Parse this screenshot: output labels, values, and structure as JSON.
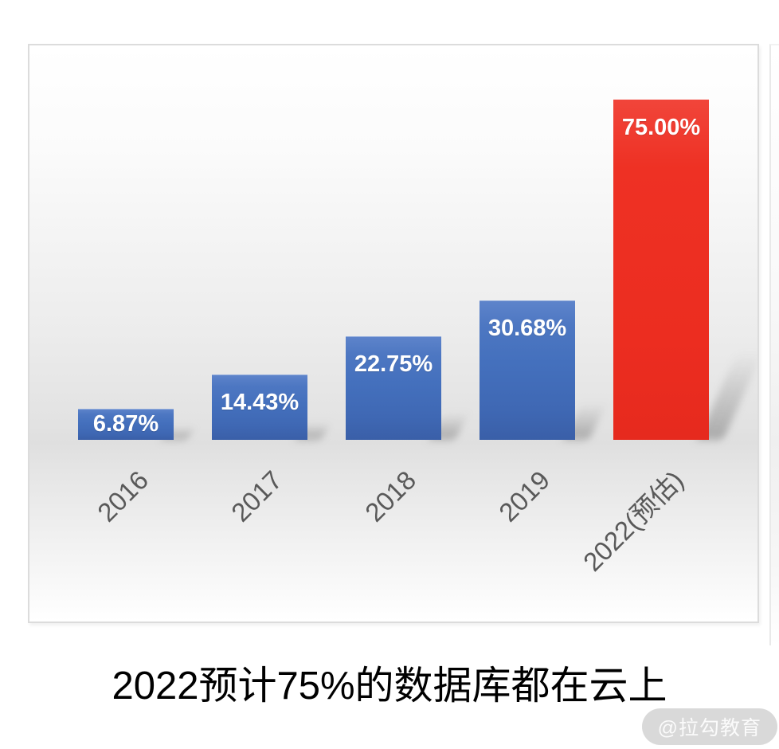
{
  "caption": "2022预计75%的数据库都在云上",
  "watermark": "@拉勾教育",
  "colors": {
    "bar_blue": "#4472c4",
    "bar_red": "#ed3124",
    "tick_text": "#595959",
    "panel_border": "#dcdcdc",
    "watermark_bg": "#d9d9d9"
  },
  "chart_data": {
    "type": "bar",
    "title": "2022预计75%的数据库都在云上",
    "categories": [
      "2016",
      "2017",
      "2018",
      "2019",
      "2022(预估)"
    ],
    "values": [
      6.87,
      14.43,
      22.75,
      30.68,
      75.0
    ],
    "data_labels": [
      "6.87%",
      "14.43%",
      "22.75%",
      "30.68%",
      "75.00%"
    ],
    "bar_colors": [
      "#4472c4",
      "#4472c4",
      "#4472c4",
      "#4472c4",
      "#ed3124"
    ],
    "highlight_index": 4,
    "xlabel": "",
    "ylabel": "",
    "ylim": [
      0,
      80
    ],
    "y_axis_visible": false,
    "grid": false,
    "legend": false,
    "x_tick_rotation": -45,
    "data_label_position": "inside-end",
    "data_label_color": "#ffffff"
  }
}
